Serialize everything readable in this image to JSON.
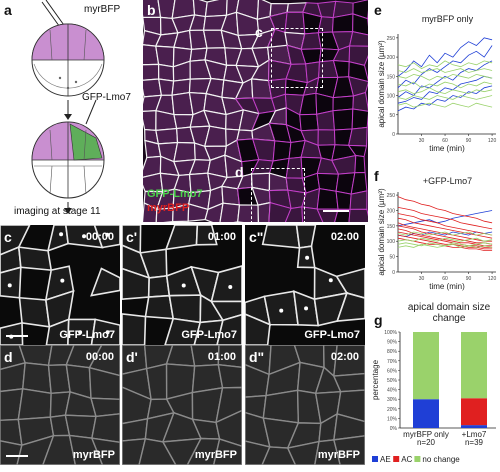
{
  "panels": {
    "a": {
      "label": "a",
      "myr": "myrBFP",
      "gfp": "GFP-Lmo7",
      "imaging": "imaging at stage 11"
    },
    "b": {
      "label": "b",
      "roi_c": "c",
      "roi_d": "d",
      "gfp": "GFP-Lmo7",
      "myr": "myrBFP"
    },
    "c_row": [
      {
        "label": "c",
        "time": "00:00",
        "channel": "GFP-Lmo7"
      },
      {
        "label": "c'",
        "time": "01:00",
        "channel": "GFP-Lmo7"
      },
      {
        "label": "c\"",
        "time": "02:00",
        "channel": "GFP-Lmo7"
      }
    ],
    "d_row": [
      {
        "label": "d",
        "time": "00:00",
        "channel": "myrBFP"
      },
      {
        "label": "d'",
        "time": "01:00",
        "channel": "myrBFP"
      },
      {
        "label": "d\"",
        "time": "02:00",
        "channel": "myrBFP"
      }
    ],
    "e": {
      "label": "e"
    },
    "f": {
      "label": "f"
    },
    "g": {
      "label": "g"
    }
  },
  "colors": {
    "magenta": "#c23fc8",
    "green": "#3fbf3f",
    "red": "#e02020",
    "blue": "#1f3fd6",
    "lightgreen": "#9ad26b"
  },
  "chart_data": [
    {
      "type": "line",
      "title": "myrBFP only",
      "xlabel": "time (min)",
      "ylabel": "apical domain size (µm²)",
      "xticks": [
        "30",
        "60",
        "90",
        "120"
      ],
      "yticks": [
        "0",
        "50",
        "100",
        "150",
        "200",
        "250"
      ],
      "xlim": [
        0,
        125
      ],
      "ylim": [
        0,
        260
      ],
      "x": [
        0,
        10,
        20,
        30,
        40,
        50,
        60,
        70,
        80,
        90,
        100,
        110,
        120
      ],
      "series": [
        {
          "color": "#1f3fd6",
          "values": [
            150,
            165,
            190,
            175,
            205,
            185,
            210,
            200,
            225,
            240,
            230,
            250,
            245
          ]
        },
        {
          "color": "#1f3fd6",
          "values": [
            120,
            140,
            130,
            155,
            170,
            160,
            175,
            190,
            185,
            205,
            215,
            200,
            230
          ]
        },
        {
          "color": "#1f3fd6",
          "values": [
            95,
            110,
            100,
            125,
            120,
            135,
            150,
            140,
            160,
            170,
            165,
            180,
            190
          ]
        },
        {
          "color": "#1f3fd6",
          "values": [
            80,
            85,
            95,
            90,
            110,
            105,
            120,
            115,
            130,
            135,
            140,
            150,
            145
          ]
        },
        {
          "color": "#1f3fd6",
          "values": [
            60,
            70,
            65,
            80,
            75,
            90,
            85,
            100,
            95,
            110,
            105,
            120,
            125
          ]
        },
        {
          "color": "#9ad26b",
          "values": [
            180,
            175,
            185,
            170,
            180,
            175,
            190,
            180,
            175,
            185,
            180,
            190,
            185
          ]
        },
        {
          "color": "#9ad26b",
          "values": [
            150,
            145,
            155,
            150,
            140,
            150,
            145,
            155,
            150,
            145,
            155,
            150,
            145
          ]
        },
        {
          "color": "#9ad26b",
          "values": [
            130,
            125,
            135,
            120,
            130,
            125,
            135,
            130,
            120,
            130,
            125,
            135,
            130
          ]
        },
        {
          "color": "#9ad26b",
          "values": [
            110,
            115,
            105,
            110,
            120,
            110,
            105,
            115,
            110,
            105,
            115,
            110,
            115
          ]
        },
        {
          "color": "#9ad26b",
          "values": [
            95,
            90,
            100,
            95,
            90,
            100,
            95,
            90,
            100,
            95,
            90,
            95,
            100
          ]
        },
        {
          "color": "#9ad26b",
          "values": [
            75,
            80,
            70,
            75,
            80,
            75,
            70,
            80,
            75,
            70,
            80,
            75,
            70
          ]
        },
        {
          "color": "#9ad26b",
          "values": [
            165,
            160,
            170,
            160,
            165,
            170,
            160,
            165,
            170,
            160,
            165,
            170,
            165
          ]
        }
      ]
    },
    {
      "type": "line",
      "title": "+GFP-Lmo7",
      "xlabel": "time (min)",
      "ylabel": "apical domain size (µm²)",
      "xticks": [
        "30",
        "60",
        "90",
        "120"
      ],
      "yticks": [
        "0",
        "50",
        "100",
        "150",
        "200",
        "250"
      ],
      "xlim": [
        0,
        125
      ],
      "ylim": [
        0,
        260
      ],
      "x": [
        0,
        10,
        20,
        30,
        40,
        50,
        60,
        70,
        80,
        90,
        100,
        110,
        120
      ],
      "series": [
        {
          "color": "#1f3fd6",
          "values": [
            150,
            155,
            160,
            165,
            170,
            160,
            165,
            175,
            180,
            185,
            190,
            195,
            200
          ]
        },
        {
          "color": "#1f3fd6",
          "values": [
            120,
            115,
            125,
            120,
            130,
            125,
            120,
            130,
            125,
            120,
            130,
            125,
            130
          ]
        },
        {
          "color": "#e02020",
          "values": [
            245,
            235,
            230,
            220,
            215,
            205,
            200,
            190,
            185,
            180,
            175,
            165,
            160
          ]
        },
        {
          "color": "#e02020",
          "values": [
            210,
            205,
            200,
            190,
            185,
            180,
            175,
            170,
            160,
            155,
            150,
            145,
            140
          ]
        },
        {
          "color": "#e02020",
          "values": [
            190,
            185,
            180,
            170,
            165,
            160,
            150,
            145,
            140,
            135,
            130,
            125,
            120
          ]
        },
        {
          "color": "#e02020",
          "values": [
            175,
            170,
            160,
            155,
            150,
            145,
            140,
            135,
            130,
            125,
            120,
            115,
            110
          ]
        },
        {
          "color": "#e02020",
          "values": [
            160,
            150,
            145,
            140,
            135,
            130,
            125,
            120,
            115,
            110,
            105,
            100,
            100
          ]
        },
        {
          "color": "#e02020",
          "values": [
            150,
            145,
            140,
            130,
            125,
            120,
            115,
            110,
            105,
            100,
            95,
            95,
            90
          ]
        },
        {
          "color": "#e02020",
          "values": [
            140,
            135,
            125,
            120,
            115,
            110,
            105,
            100,
            95,
            95,
            90,
            85,
            85
          ]
        },
        {
          "color": "#e02020",
          "values": [
            130,
            125,
            120,
            115,
            110,
            105,
            100,
            95,
            90,
            85,
            85,
            80,
            80
          ]
        },
        {
          "color": "#e02020",
          "values": [
            120,
            115,
            110,
            105,
            100,
            95,
            90,
            90,
            85,
            80,
            80,
            75,
            75
          ]
        },
        {
          "color": "#e02020",
          "values": [
            110,
            105,
            100,
            95,
            90,
            90,
            85,
            80,
            80,
            75,
            75,
            70,
            70
          ]
        },
        {
          "color": "#9ad26b",
          "values": [
            100,
            105,
            100,
            110,
            105,
            100,
            110,
            105,
            100,
            105,
            110,
            100,
            105
          ]
        },
        {
          "color": "#9ad26b",
          "values": [
            90,
            95,
            90,
            85,
            95,
            90,
            85,
            95,
            90,
            85,
            90,
            95,
            90
          ]
        },
        {
          "color": "#9ad26b",
          "values": [
            80,
            85,
            80,
            90,
            85,
            80,
            85,
            90,
            80,
            85,
            80,
            85,
            80
          ]
        },
        {
          "color": "#9ad26b",
          "values": [
            125,
            120,
            130,
            125,
            120,
            125,
            130,
            120,
            125,
            130,
            120,
            125,
            120
          ]
        }
      ]
    },
    {
      "type": "bar",
      "title": "apical domain size change",
      "ylabel": "percentage",
      "yticks": [
        "0%",
        "10%",
        "20%",
        "30%",
        "40%",
        "50%",
        "60%",
        "70%",
        "80%",
        "90%",
        "100%"
      ],
      "ylim": [
        0,
        100
      ],
      "categories": [
        "myrBFP only n=20",
        "+Lmo7 n=39"
      ],
      "category_lines": [
        [
          "myrBFP only",
          "n=20"
        ],
        [
          "+Lmo7",
          "n=39"
        ]
      ],
      "series": [
        {
          "name": "AE",
          "color": "#1f3fd6",
          "values": [
            30,
            3
          ]
        },
        {
          "name": "AC",
          "color": "#e02020",
          "values": [
            0,
            28
          ]
        },
        {
          "name": "no change",
          "color": "#9ad26b",
          "values": [
            70,
            69
          ]
        }
      ]
    }
  ]
}
